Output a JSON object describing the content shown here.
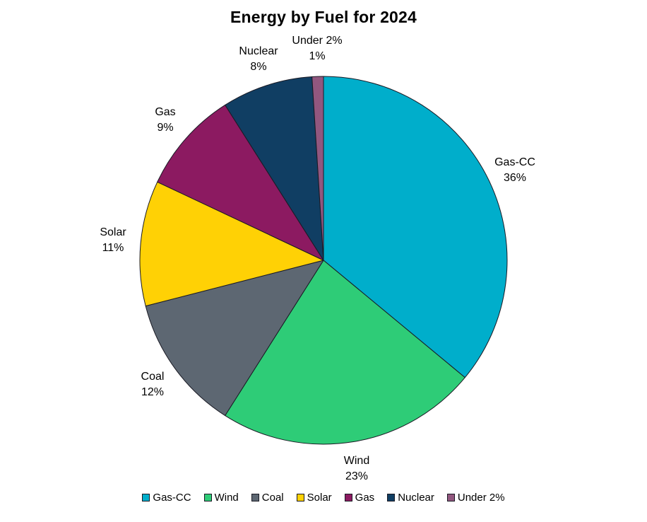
{
  "chart_data": {
    "type": "pie",
    "title": "Energy by Fuel for 2024",
    "unit": "%",
    "direction": "clockwise",
    "start_angle_deg": 0,
    "legend_position": "bottom",
    "outline_color": "#1A1A24",
    "series": [
      {
        "name": "Gas-CC",
        "value": 36,
        "color": "#00AECB"
      },
      {
        "name": "Wind",
        "value": 23,
        "color": "#2ECC77"
      },
      {
        "name": "Coal",
        "value": 12,
        "color": "#5D6772"
      },
      {
        "name": "Solar",
        "value": 11,
        "color": "#FFD105"
      },
      {
        "name": "Gas",
        "value": 9,
        "color": "#8C1A61"
      },
      {
        "name": "Nuclear",
        "value": 8,
        "color": "#103E63"
      },
      {
        "name": "Under 2%",
        "value": 1,
        "color": "#92577F"
      }
    ]
  }
}
